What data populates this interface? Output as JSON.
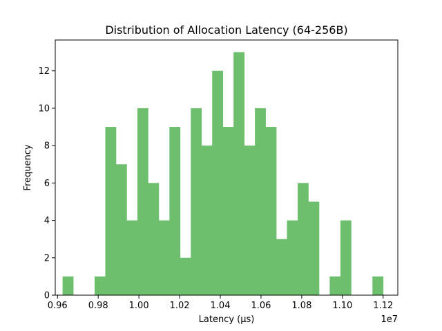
{
  "chart_data": {
    "type": "bar",
    "title": "Distribution of Allocation Latency (64-256B)",
    "xlabel": "Latency (µs)",
    "ylabel": "Frequency",
    "offset_label": "1e7",
    "xlim": [
      0.9589,
      1.1272
    ],
    "ylim": [
      0,
      13.65
    ],
    "bin_start": 0.9625,
    "bin_width": 0.00525,
    "values": [
      1,
      0,
      0,
      1,
      9,
      7,
      4,
      10,
      6,
      4,
      9,
      2,
      10,
      8,
      12,
      9,
      13,
      8,
      10,
      9,
      3,
      4,
      6,
      5,
      0,
      1,
      4,
      0,
      0,
      1
    ],
    "x_ticks": [
      0.96,
      0.98,
      1.0,
      1.02,
      1.04,
      1.06,
      1.08,
      1.1,
      1.12
    ],
    "x_tick_labels": [
      "0.96",
      "0.98",
      "1.00",
      "1.02",
      "1.04",
      "1.06",
      "1.08",
      "1.10",
      "1.12"
    ],
    "y_ticks": [
      0,
      2,
      4,
      6,
      8,
      10,
      12
    ],
    "y_tick_labels": [
      "0",
      "2",
      "4",
      "6",
      "8",
      "10",
      "12"
    ],
    "bar_color": "#6dbe6d",
    "grid": false,
    "legend": "none"
  }
}
